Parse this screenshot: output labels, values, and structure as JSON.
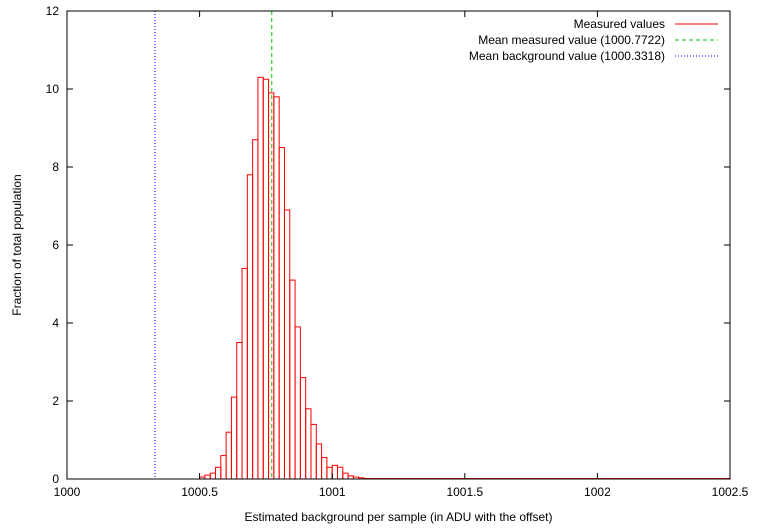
{
  "chart_data": {
    "type": "bar",
    "title": "",
    "xlabel": "Estimated background per sample (in ADU with the offset)",
    "ylabel": "Fraction of total population",
    "xlim": [
      1000,
      1002.5
    ],
    "ylim": [
      0,
      12
    ],
    "x_ticks": [
      1000,
      1000.5,
      1001,
      1001.5,
      1002,
      1002.5
    ],
    "x_tick_labels": [
      "1000",
      "1000.5",
      "1001",
      "1001.5",
      "1002",
      "1002.5"
    ],
    "y_ticks": [
      0,
      2,
      4,
      6,
      8,
      10,
      12
    ],
    "y_tick_labels": [
      "0",
      "2",
      "4",
      "6",
      "8",
      "10",
      "12"
    ],
    "grid": false,
    "legend_position": "top-right",
    "bin_width": 0.02,
    "series": [
      {
        "name": "Measured values",
        "color": "#ff0000",
        "style": "histogram",
        "bin_centers": [
          1000.51,
          1000.53,
          1000.55,
          1000.57,
          1000.59,
          1000.61,
          1000.63,
          1000.65,
          1000.67,
          1000.69,
          1000.71,
          1000.73,
          1000.75,
          1000.77,
          1000.79,
          1000.81,
          1000.83,
          1000.85,
          1000.87,
          1000.89,
          1000.91,
          1000.93,
          1000.95,
          1000.97,
          1000.99,
          1001.01,
          1001.03,
          1001.05,
          1001.07,
          1001.09,
          1001.11
        ],
        "values": [
          0.05,
          0.1,
          0.15,
          0.3,
          0.6,
          1.2,
          2.1,
          3.5,
          5.4,
          7.8,
          8.7,
          10.3,
          10.25,
          9.9,
          9.8,
          8.5,
          6.9,
          5.1,
          3.9,
          2.6,
          1.8,
          1.4,
          0.9,
          0.55,
          0.3,
          0.35,
          0.3,
          0.15,
          0.08,
          0.05,
          0.03
        ]
      },
      {
        "name": "Mean measured value (1000.7722)",
        "color": "#00c000",
        "style": "vertical-dashed-line",
        "x": 1000.7722
      },
      {
        "name": "Mean background value (1000.3318)",
        "color": "#0000ff",
        "style": "vertical-dotted-line",
        "x": 1000.3318
      }
    ]
  }
}
